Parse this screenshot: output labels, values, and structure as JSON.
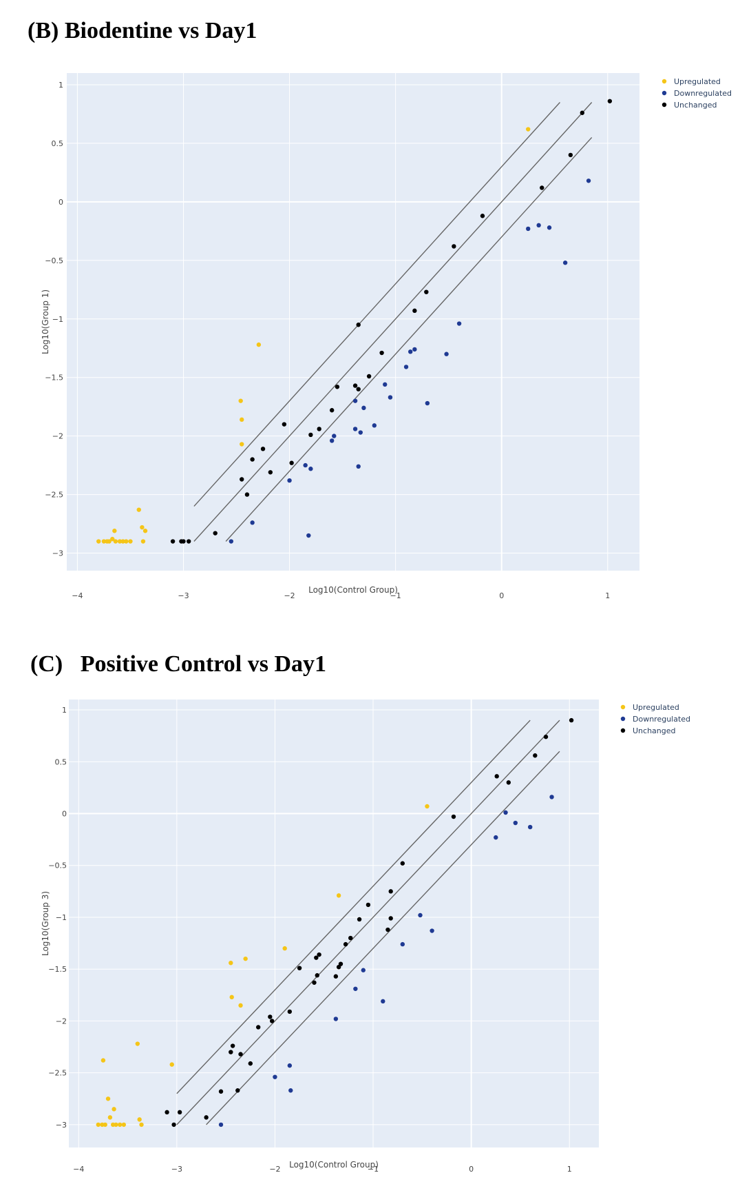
{
  "colors": {
    "background": "#e5ecf6",
    "grid": "#ffffff",
    "upregulated": "#f5c518",
    "downregulated": "#1f3a93",
    "unchanged": "#000000",
    "line": "#666666"
  },
  "chart_data": [
    {
      "id": "b",
      "type": "scatter",
      "title": "(B) Biodentine vs Day1",
      "xlabel": "Log10(Control Group)",
      "ylabel": "Log10(Group 1)",
      "xlim": [
        -4.1,
        1.3
      ],
      "ylim": [
        -3.15,
        1.1
      ],
      "xticks": [
        -4,
        -3,
        -2,
        -1,
        0,
        1
      ],
      "yticks": [
        1,
        0.5,
        0,
        -0.5,
        -1,
        -1.5,
        -2,
        -2.5,
        -3
      ],
      "xtick_labels": [
        "−4",
        "−3",
        "−2",
        "−1",
        "0",
        "1"
      ],
      "ytick_labels": [
        "1",
        "0.5",
        "0",
        "−0.5",
        "−1",
        "−1.5",
        "−2",
        "−2.5",
        "−3"
      ],
      "legend": [
        "Upregulated",
        "Downregulated",
        "Unchanged"
      ],
      "lines": [
        {
          "x": [
            -2.9,
            0.55
          ],
          "y": [
            -2.6,
            0.85
          ]
        },
        {
          "x": [
            -2.9,
            0.85
          ],
          "y": [
            -2.9,
            0.85
          ]
        },
        {
          "x": [
            -2.6,
            0.85
          ],
          "y": [
            -2.9,
            0.55
          ]
        }
      ],
      "series": [
        {
          "name": "Upregulated",
          "points": [
            [
              -3.8,
              -2.9
            ],
            [
              -3.75,
              -2.9
            ],
            [
              -3.72,
              -2.9
            ],
            [
              -3.7,
              -2.9
            ],
            [
              -3.67,
              -2.88
            ],
            [
              -3.64,
              -2.9
            ],
            [
              -3.6,
              -2.9
            ],
            [
              -3.57,
              -2.9
            ],
            [
              -3.54,
              -2.9
            ],
            [
              -3.5,
              -2.9
            ],
            [
              -3.65,
              -2.81
            ],
            [
              -3.42,
              -2.63
            ],
            [
              -3.39,
              -2.78
            ],
            [
              -3.36,
              -2.81
            ],
            [
              -3.38,
              -2.9
            ],
            [
              -2.46,
              -1.7
            ],
            [
              -2.45,
              -1.86
            ],
            [
              -2.45,
              -2.07
            ],
            [
              -2.29,
              -1.22
            ],
            [
              0.25,
              0.62
            ]
          ]
        },
        {
          "name": "Downregulated",
          "points": [
            [
              -2.55,
              -2.9
            ],
            [
              -2.35,
              -2.74
            ],
            [
              -2.0,
              -2.38
            ],
            [
              -1.85,
              -2.25
            ],
            [
              -1.8,
              -2.28
            ],
            [
              -1.82,
              -2.85
            ],
            [
              -1.6,
              -2.04
            ],
            [
              -1.58,
              -2.0
            ],
            [
              -1.38,
              -1.7
            ],
            [
              -1.38,
              -1.94
            ],
            [
              -1.35,
              -2.26
            ],
            [
              -1.33,
              -1.97
            ],
            [
              -1.3,
              -1.76
            ],
            [
              -1.2,
              -1.91
            ],
            [
              -1.1,
              -1.56
            ],
            [
              -1.05,
              -1.67
            ],
            [
              -0.9,
              -1.41
            ],
            [
              -0.86,
              -1.28
            ],
            [
              -0.82,
              -1.26
            ],
            [
              -0.7,
              -1.72
            ],
            [
              -0.52,
              -1.3
            ],
            [
              -0.4,
              -1.04
            ],
            [
              0.25,
              -0.23
            ],
            [
              0.35,
              -0.2
            ],
            [
              0.45,
              -0.22
            ],
            [
              0.6,
              -0.52
            ],
            [
              0.82,
              0.18
            ]
          ]
        },
        {
          "name": "Unchanged",
          "points": [
            [
              -3.1,
              -2.9
            ],
            [
              -3.02,
              -2.9
            ],
            [
              -3.0,
              -2.9
            ],
            [
              -2.95,
              -2.9
            ],
            [
              -2.7,
              -2.83
            ],
            [
              -2.45,
              -2.37
            ],
            [
              -2.4,
              -2.5
            ],
            [
              -2.35,
              -2.2
            ],
            [
              -2.25,
              -2.11
            ],
            [
              -2.18,
              -2.31
            ],
            [
              -2.05,
              -1.9
            ],
            [
              -1.98,
              -2.23
            ],
            [
              -1.8,
              -1.99
            ],
            [
              -1.72,
              -1.94
            ],
            [
              -1.6,
              -1.78
            ],
            [
              -1.55,
              -1.58
            ],
            [
              -1.38,
              -1.57
            ],
            [
              -1.35,
              -1.6
            ],
            [
              -1.35,
              -1.05
            ],
            [
              -1.25,
              -1.49
            ],
            [
              -1.13,
              -1.29
            ],
            [
              -0.82,
              -0.93
            ],
            [
              -0.71,
              -0.77
            ],
            [
              -0.45,
              -0.38
            ],
            [
              -0.18,
              -0.12
            ],
            [
              0.38,
              0.12
            ],
            [
              0.65,
              0.4
            ],
            [
              0.76,
              0.76
            ],
            [
              1.02,
              0.86
            ]
          ]
        }
      ]
    },
    {
      "id": "c",
      "type": "scatter",
      "title": "(C)   Positive Control vs Day1",
      "xlabel": "Log10(Control Group)",
      "ylabel": "Log10(Group 3)",
      "xlim": [
        -4.1,
        1.3
      ],
      "ylim": [
        -3.22,
        1.1
      ],
      "xticks": [
        -4,
        -3,
        -2,
        -1,
        0,
        1
      ],
      "yticks": [
        1,
        0.5,
        0,
        -0.5,
        -1,
        -1.5,
        -2,
        -2.5,
        -3
      ],
      "xtick_labels": [
        "−4",
        "−3",
        "−2",
        "−1",
        "0",
        "1"
      ],
      "ytick_labels": [
        "1",
        "0.5",
        "0",
        "−0.5",
        "−1",
        "−1.5",
        "−2",
        "−2.5",
        "−3"
      ],
      "legend": [
        "Upregulated",
        "Downregulated",
        "Unchanged"
      ],
      "lines": [
        {
          "x": [
            -3.0,
            0.6
          ],
          "y": [
            -2.7,
            0.9
          ]
        },
        {
          "x": [
            -3.0,
            0.9
          ],
          "y": [
            -3.0,
            0.9
          ]
        },
        {
          "x": [
            -2.7,
            0.9
          ],
          "y": [
            -3.0,
            0.6
          ]
        }
      ],
      "series": [
        {
          "name": "Upregulated",
          "points": [
            [
              -3.8,
              -3.0
            ],
            [
              -3.76,
              -3.0
            ],
            [
              -3.73,
              -3.0
            ],
            [
              -3.68,
              -2.93
            ],
            [
              -3.65,
              -3.0
            ],
            [
              -3.62,
              -3.0
            ],
            [
              -3.58,
              -3.0
            ],
            [
              -3.54,
              -3.0
            ],
            [
              -3.64,
              -2.85
            ],
            [
              -3.7,
              -2.75
            ],
            [
              -3.75,
              -2.38
            ],
            [
              -3.4,
              -2.22
            ],
            [
              -3.38,
              -2.95
            ],
            [
              -3.36,
              -3.0
            ],
            [
              -3.05,
              -2.42
            ],
            [
              -2.45,
              -1.44
            ],
            [
              -2.44,
              -1.77
            ],
            [
              -2.35,
              -1.85
            ],
            [
              -2.3,
              -1.4
            ],
            [
              -1.9,
              -1.3
            ],
            [
              -1.35,
              -0.79
            ],
            [
              -0.45,
              0.07
            ]
          ]
        },
        {
          "name": "Downregulated",
          "points": [
            [
              -2.55,
              -3.0
            ],
            [
              -2.0,
              -2.54
            ],
            [
              -1.85,
              -2.43
            ],
            [
              -1.84,
              -2.67
            ],
            [
              -1.38,
              -1.98
            ],
            [
              -1.18,
              -1.69
            ],
            [
              -1.1,
              -1.51
            ],
            [
              -0.9,
              -1.81
            ],
            [
              -0.7,
              -1.26
            ],
            [
              -0.52,
              -0.98
            ],
            [
              -0.4,
              -1.13
            ],
            [
              0.25,
              -0.23
            ],
            [
              0.35,
              0.01
            ],
            [
              0.45,
              -0.09
            ],
            [
              0.6,
              -0.13
            ],
            [
              0.82,
              0.16
            ]
          ]
        },
        {
          "name": "Unchanged",
          "points": [
            [
              -3.1,
              -2.88
            ],
            [
              -3.03,
              -3.0
            ],
            [
              -2.97,
              -2.88
            ],
            [
              -2.7,
              -2.93
            ],
            [
              -2.55,
              -2.68
            ],
            [
              -2.45,
              -2.3
            ],
            [
              -2.43,
              -2.24
            ],
            [
              -2.38,
              -2.67
            ],
            [
              -2.35,
              -2.32
            ],
            [
              -2.25,
              -2.41
            ],
            [
              -2.17,
              -2.06
            ],
            [
              -2.05,
              -1.96
            ],
            [
              -2.03,
              -2.0
            ],
            [
              -1.85,
              -1.91
            ],
            [
              -1.75,
              -1.49
            ],
            [
              -1.6,
              -1.63
            ],
            [
              -1.58,
              -1.39
            ],
            [
              -1.57,
              -1.56
            ],
            [
              -1.55,
              -1.36
            ],
            [
              -1.38,
              -1.57
            ],
            [
              -1.35,
              -1.48
            ],
            [
              -1.33,
              -1.45
            ],
            [
              -1.28,
              -1.26
            ],
            [
              -1.23,
              -1.2
            ],
            [
              -1.14,
              -1.02
            ],
            [
              -1.05,
              -0.88
            ],
            [
              -0.85,
              -1.12
            ],
            [
              -0.82,
              -0.75
            ],
            [
              -0.82,
              -1.01
            ],
            [
              -0.7,
              -0.48
            ],
            [
              -0.18,
              -0.03
            ],
            [
              0.26,
              0.36
            ],
            [
              0.38,
              0.3
            ],
            [
              0.65,
              0.56
            ],
            [
              0.76,
              0.74
            ],
            [
              1.02,
              0.9
            ]
          ]
        }
      ]
    }
  ]
}
